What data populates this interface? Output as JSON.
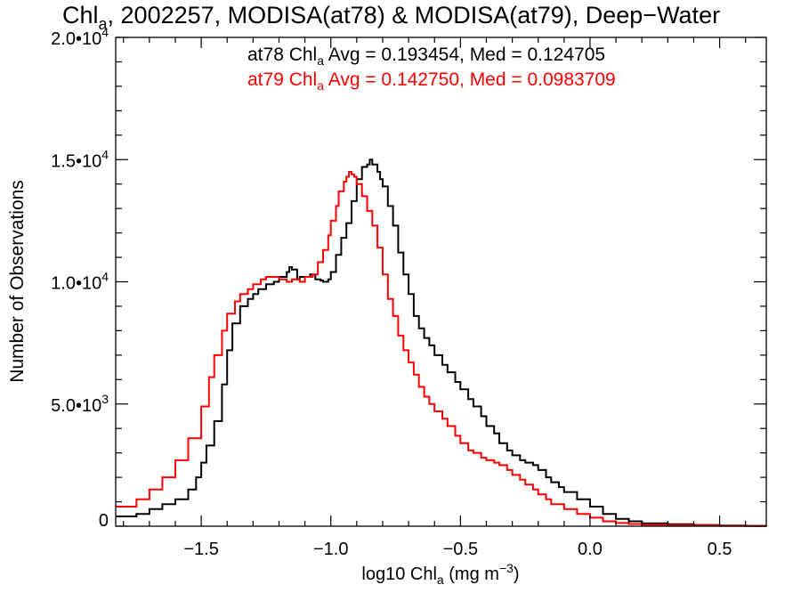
{
  "chart_data": {
    "type": "line",
    "title": {
      "pre": "Chl",
      "sub": "a",
      "post": ", 2002257, MODISA(at78) & MODISA(at79), Deep−Water"
    },
    "xlabel": {
      "pre": "log10 Chl",
      "sub": "a",
      "mid": " (mg m",
      "sup": "−3",
      "post": ")"
    },
    "ylabel": "Number of Observations",
    "xlim": [
      -1.83,
      0.68
    ],
    "ylim": [
      0,
      20000
    ],
    "xticks": [
      {
        "v": -1.5,
        "label": "−1.5"
      },
      {
        "v": -1.0,
        "label": "−1.0"
      },
      {
        "v": -0.5,
        "label": "−0.5"
      },
      {
        "v": 0.0,
        "label": "0.0"
      },
      {
        "v": 0.5,
        "label": "0.5"
      }
    ],
    "yticks": [
      {
        "v": 0,
        "mant": "0",
        "exp": ""
      },
      {
        "v": 5000,
        "mant": "5.0•10",
        "exp": "3"
      },
      {
        "v": 10000,
        "mant": "1.0•10",
        "exp": "4"
      },
      {
        "v": 15000,
        "mant": "1.5•10",
        "exp": "4"
      },
      {
        "v": 20000,
        "mant": "2.0•10",
        "exp": "4"
      }
    ],
    "annotations": [
      {
        "pre": "at78 Chl",
        "sub": "a",
        "post": " Avg = 0.193454, Med = 0.124705",
        "color": "#000000"
      },
      {
        "pre": "at79 Chl",
        "sub": "a",
        "post": " Avg = 0.142750, Med = 0.0983709",
        "color": "#ff0000"
      }
    ],
    "series": [
      {
        "color": "#000000",
        "x": [
          -1.83,
          -1.75,
          -1.7,
          -1.65,
          -1.6,
          -1.55,
          -1.52,
          -1.5,
          -1.48,
          -1.45,
          -1.42,
          -1.4,
          -1.38,
          -1.35,
          -1.32,
          -1.3,
          -1.28,
          -1.25,
          -1.22,
          -1.2,
          -1.17,
          -1.16,
          -1.15,
          -1.13,
          -1.12,
          -1.1,
          -1.08,
          -1.06,
          -1.04,
          -1.03,
          -1.01,
          -1.0,
          -0.98,
          -0.96,
          -0.94,
          -0.92,
          -0.9,
          -0.88,
          -0.86,
          -0.85,
          -0.84,
          -0.83,
          -0.82,
          -0.81,
          -0.8,
          -0.78,
          -0.76,
          -0.74,
          -0.72,
          -0.7,
          -0.68,
          -0.66,
          -0.64,
          -0.62,
          -0.6,
          -0.57,
          -0.55,
          -0.52,
          -0.5,
          -0.47,
          -0.45,
          -0.42,
          -0.4,
          -0.37,
          -0.35,
          -0.32,
          -0.3,
          -0.27,
          -0.25,
          -0.22,
          -0.2,
          -0.17,
          -0.15,
          -0.12,
          -0.1,
          -0.05,
          0.0,
          0.05,
          0.1,
          0.15,
          0.2,
          0.3,
          0.4,
          0.5,
          0.6,
          0.68
        ],
        "y": [
          400,
          500,
          700,
          900,
          1100,
          1500,
          2000,
          2600,
          3300,
          4300,
          5800,
          7200,
          8300,
          9000,
          9300,
          9500,
          9700,
          9900,
          10000,
          10200,
          10400,
          10600,
          10500,
          10100,
          10200,
          10200,
          10300,
          10100,
          10050,
          10000,
          10100,
          10400,
          11100,
          11800,
          12400,
          13300,
          14200,
          14700,
          14800,
          15000,
          14800,
          14800,
          14500,
          14200,
          13900,
          13100,
          12300,
          11200,
          10300,
          9500,
          8600,
          8100,
          7700,
          7400,
          7000,
          6600,
          6300,
          5900,
          5600,
          5200,
          4900,
          4500,
          4100,
          3800,
          3400,
          3100,
          2900,
          2700,
          2600,
          2500,
          2300,
          2000,
          1800,
          1600,
          1400,
          1100,
          800,
          500,
          300,
          200,
          120,
          80,
          50,
          30,
          15,
          10
        ]
      },
      {
        "color": "#ff0000",
        "x": [
          -1.83,
          -1.75,
          -1.7,
          -1.65,
          -1.6,
          -1.55,
          -1.5,
          -1.47,
          -1.45,
          -1.42,
          -1.4,
          -1.37,
          -1.35,
          -1.32,
          -1.3,
          -1.27,
          -1.25,
          -1.22,
          -1.2,
          -1.17,
          -1.15,
          -1.12,
          -1.1,
          -1.07,
          -1.05,
          -1.03,
          -1.01,
          -1.0,
          -0.98,
          -0.97,
          -0.95,
          -0.94,
          -0.93,
          -0.92,
          -0.91,
          -0.9,
          -0.88,
          -0.86,
          -0.84,
          -0.82,
          -0.8,
          -0.78,
          -0.76,
          -0.74,
          -0.72,
          -0.7,
          -0.68,
          -0.66,
          -0.64,
          -0.62,
          -0.6,
          -0.57,
          -0.55,
          -0.52,
          -0.5,
          -0.47,
          -0.45,
          -0.42,
          -0.4,
          -0.37,
          -0.35,
          -0.32,
          -0.3,
          -0.27,
          -0.25,
          -0.22,
          -0.2,
          -0.17,
          -0.15,
          -0.1,
          -0.05,
          0.0,
          0.05,
          0.1,
          0.15,
          0.2,
          0.3,
          0.4,
          0.5,
          0.6,
          0.68
        ],
        "y": [
          800,
          1100,
          1500,
          2000,
          2700,
          3600,
          4900,
          6100,
          7000,
          8000,
          8700,
          9200,
          9500,
          9700,
          9900,
          10100,
          10200,
          10200,
          10100,
          10000,
          10100,
          10000,
          10200,
          10300,
          10800,
          11300,
          11900,
          12500,
          13100,
          13700,
          14100,
          14300,
          14500,
          14400,
          14300,
          14000,
          13500,
          12900,
          12300,
          11400,
          10300,
          9300,
          8600,
          7800,
          7200,
          6700,
          6200,
          5700,
          5300,
          5000,
          4700,
          4400,
          4100,
          3700,
          3400,
          3100,
          3000,
          2800,
          2700,
          2600,
          2500,
          2300,
          2100,
          1900,
          1700,
          1500,
          1300,
          1100,
          900,
          700,
          500,
          350,
          200,
          130,
          90,
          60,
          40,
          25,
          15,
          8,
          5
        ]
      }
    ]
  }
}
